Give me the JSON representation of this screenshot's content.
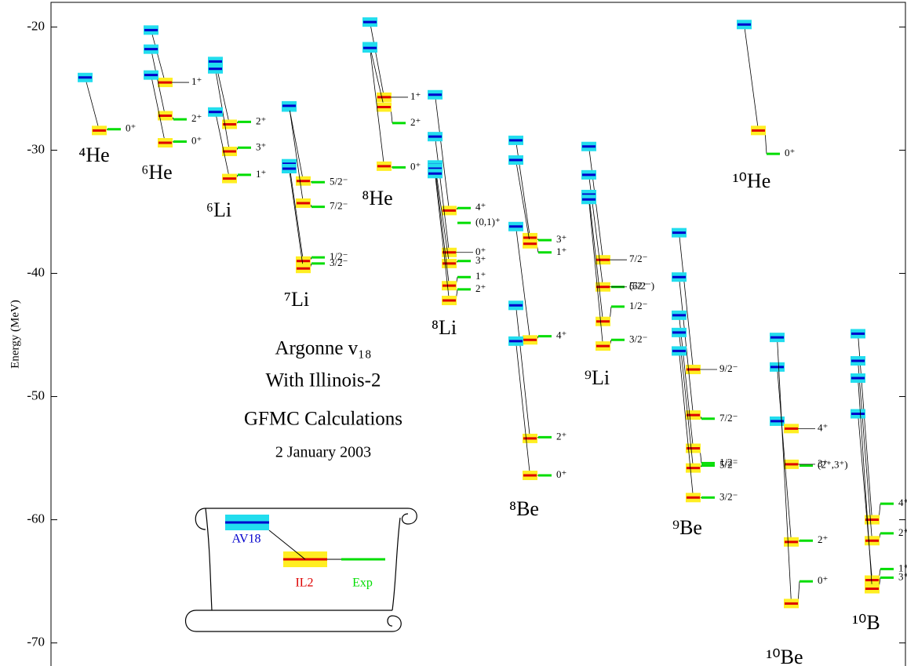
{
  "chart_data": {
    "type": "level",
    "y_label": "Energy (MeV)",
    "ylim": [
      -72,
      -18
    ],
    "yticks": [
      -20,
      -30,
      -40,
      -50,
      -60,
      -70
    ],
    "annotations": [
      "Argonne v₁₈",
      "With Illinois-2",
      "GFMC Calculations",
      "2 January 2003"
    ],
    "series": [
      {
        "name": "AV18",
        "color": "#0000cc"
      },
      {
        "name": "IL2",
        "color": "#dd0000"
      },
      {
        "name": "Exp",
        "color": "#00dd00"
      }
    ],
    "nuclei": [
      {
        "name": "⁴He",
        "levels": [
          {
            "label": "0⁺",
            "av18": -24.1,
            "il2": -28.4,
            "exp": -28.3
          }
        ]
      },
      {
        "name": "⁶He",
        "levels": [
          {
            "label": "1⁺",
            "av18": -20.25,
            "il2": -24.5,
            "exp": null
          },
          {
            "label": "2⁺",
            "av18": -21.8,
            "il2": -27.2,
            "exp": -27.5
          },
          {
            "label": "0⁺",
            "av18": -23.9,
            "il2": -29.4,
            "exp": -29.3
          }
        ]
      },
      {
        "name": "⁶Li",
        "levels": [
          {
            "label": "2⁺",
            "av18": -22.8,
            "il2": -27.9,
            "exp": -27.7
          },
          {
            "label": "3⁺",
            "av18": -23.4,
            "il2": -30.1,
            "exp": -29.8
          },
          {
            "label": "1⁺",
            "av18": -26.9,
            "il2": -32.3,
            "exp": -32.0
          }
        ]
      },
      {
        "name": "⁷Li",
        "levels": [
          {
            "label": "5/2⁻",
            "av18": -26.5,
            "il2": -32.5,
            "exp": -32.6
          },
          {
            "label": "7/2⁻",
            "av18": -26.4,
            "il2": -34.3,
            "exp": -34.6
          },
          {
            "label": "1/2⁻",
            "av18": -31.1,
            "il2": -39.0,
            "exp": -38.7
          },
          {
            "label": "3/2⁻",
            "av18": -31.5,
            "il2": -39.6,
            "exp": -39.2
          }
        ]
      },
      {
        "name": "⁸He",
        "levels": [
          {
            "label": "1⁺",
            "av18": -19.6,
            "il2": -25.7,
            "exp": null
          },
          {
            "label": "2⁺",
            "av18": -21.6,
            "il2": -26.5,
            "exp": -27.8
          },
          {
            "label": "0⁺",
            "av18": -21.7,
            "il2": -31.3,
            "exp": -31.4
          }
        ]
      },
      {
        "name": "⁸Li",
        "levels": [
          {
            "label": "4⁺",
            "av18": -25.5,
            "il2": -34.9,
            "exp": -34.7
          },
          {
            "label": "(0,1)⁺",
            "av18": null,
            "il2": null,
            "exp": -35.9
          },
          {
            "label": "0⁺",
            "av18": -28.9,
            "il2": -38.3,
            "exp": null
          },
          {
            "label": "3⁺",
            "av18": -31.2,
            "il2": -39.2,
            "exp": -39.0
          },
          {
            "label": "1⁺",
            "av18": -31.5,
            "il2": -41.0,
            "exp": -40.3
          },
          {
            "label": "2⁺",
            "av18": -31.9,
            "il2": -42.2,
            "exp": -41.3
          }
        ]
      },
      {
        "name": "⁸Be",
        "levels": [
          {
            "label": "3⁺",
            "av18": -29.2,
            "il2": -37.1,
            "exp": -37.3
          },
          {
            "label": "1⁺",
            "av18": -30.8,
            "il2": -37.6,
            "exp": -38.3
          },
          {
            "label": "4⁺",
            "av18": -36.2,
            "il2": -45.4,
            "exp": -45.1
          },
          {
            "label": "2⁺",
            "av18": -42.6,
            "il2": -53.4,
            "exp": -53.3
          },
          {
            "label": "0⁺",
            "av18": -45.5,
            "il2": -56.4,
            "exp": -56.4
          }
        ]
      },
      {
        "name": "⁹Li",
        "levels": [
          {
            "label": "7/2⁻",
            "av18": -29.7,
            "il2": -38.9,
            "exp": null
          },
          {
            "label": "(5/2⁻)",
            "av18": null,
            "il2": null,
            "exp": -41.1
          },
          {
            "label": "5/2⁻",
            "av18": -32.0,
            "il2": -41.1,
            "exp": null
          },
          {
            "label": "1/2⁻",
            "av18": -33.6,
            "il2": -43.9,
            "exp": -42.7
          },
          {
            "label": "3/2⁻",
            "av18": -34.0,
            "il2": -45.9,
            "exp": -45.4
          }
        ]
      },
      {
        "name": "⁹Be",
        "levels": [
          {
            "label": "9/2⁻",
            "av18": -36.7,
            "il2": -47.8,
            "exp": null
          },
          {
            "label": "7/2⁻",
            "av18": -40.3,
            "il2": -51.5,
            "exp": -51.8
          },
          {
            "label": "1/2⁻",
            "av18": -43.4,
            "il2": -54.2,
            "exp": -55.4
          },
          {
            "label": "5/2⁻",
            "av18": -44.8,
            "il2": -55.8,
            "exp": -55.6
          },
          {
            "label": "3/2⁻",
            "av18": -46.3,
            "il2": -58.2,
            "exp": -58.2
          }
        ]
      },
      {
        "name": "¹⁰He",
        "levels": [
          {
            "label": "0⁺",
            "av18": -19.8,
            "il2": -28.4,
            "exp": -30.3
          }
        ]
      },
      {
        "name": "¹⁰Be",
        "levels": [
          {
            "label": "4⁺",
            "av18": -52.0,
            "il2": -52.6,
            "exp": null
          },
          {
            "label": "(2⁺,3⁺)",
            "av18": null,
            "il2": null,
            "exp": -55.6
          },
          {
            "label": "3⁺",
            "av18": null,
            "il2": -55.5,
            "exp": null
          },
          {
            "label": "2⁺",
            "av18": -47.6,
            "il2": -61.8,
            "exp": -61.7
          },
          {
            "label": "0⁺",
            "av18": -45.2,
            "il2": -66.8,
            "exp": -65.0
          }
        ]
      },
      {
        "name": "¹⁰B",
        "levels": [
          {
            "label": "4⁺",
            "av18": -44.9,
            "il2": -60.0,
            "exp": -58.7
          },
          {
            "label": "2⁺",
            "av18": -47.1,
            "il2": -61.7,
            "exp": -61.1
          },
          {
            "label": "1⁺",
            "av18": -51.4,
            "il2": -64.9,
            "exp": -64.0
          },
          {
            "label": "3⁺",
            "av18": -48.5,
            "il2": -65.6,
            "exp": -64.7
          }
        ]
      }
    ]
  }
}
